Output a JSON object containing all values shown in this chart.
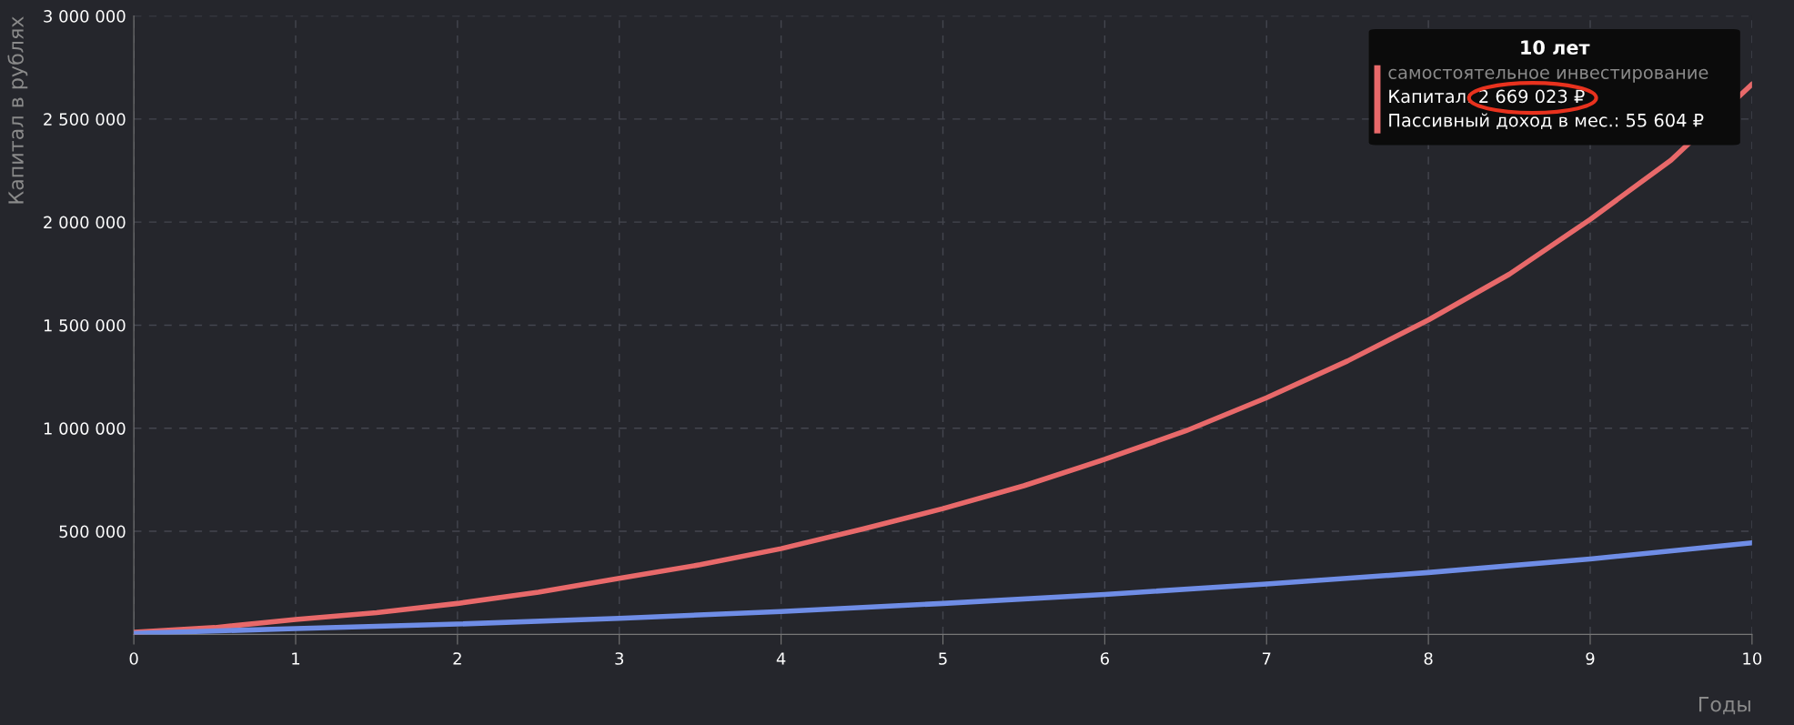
{
  "chart_data": {
    "type": "line",
    "xlabel": "Годы",
    "ylabel": "Капитал в рублях",
    "x": [
      0,
      0.5,
      1,
      1.5,
      2,
      2.5,
      3,
      3.5,
      4,
      4.5,
      5,
      5.5,
      6,
      6.5,
      7,
      7.5,
      8,
      8.5,
      9,
      9.5,
      10
    ],
    "series": [
      {
        "name": "самостоятельное инвестирование",
        "color": "#e8696a",
        "values": [
          10000,
          33000,
          72000,
          105000,
          150000,
          205000,
          272000,
          338000,
          416000,
          510000,
          610000,
          721000,
          849000,
          987000,
          1148000,
          1326000,
          1525000,
          1747000,
          2013000,
          2301000,
          2669023
        ]
      },
      {
        "color": "#6f8de6",
        "x": [
          0,
          1,
          2,
          3,
          4,
          5,
          6,
          7,
          8,
          9,
          10
        ],
        "values": [
          5000,
          28000,
          50000,
          78000,
          111000,
          150000,
          194000,
          244000,
          300000,
          366000,
          444000
        ]
      }
    ],
    "xlim": [
      0,
      10
    ],
    "xticks": [
      0,
      1,
      2,
      3,
      4,
      5,
      6,
      7,
      8,
      9,
      10
    ],
    "ylim": [
      0,
      3000000
    ],
    "yticks": [
      {
        "value": 500000,
        "label": "500 000"
      },
      {
        "value": 1000000,
        "label": "1 000 000"
      },
      {
        "value": 1500000,
        "label": "1 500 000"
      },
      {
        "value": 2000000,
        "label": "2 000 000"
      },
      {
        "value": 2500000,
        "label": "2 500 000"
      },
      {
        "value": 3000000,
        "label": "3 000 000"
      }
    ],
    "grid": true,
    "marker": "none",
    "line_style": "solid",
    "annotations": [
      "10 лет",
      "Капитал: 2 669 023 ₽",
      "Пассивный доход в мес.: 55 604 ₽"
    ]
  }
}
